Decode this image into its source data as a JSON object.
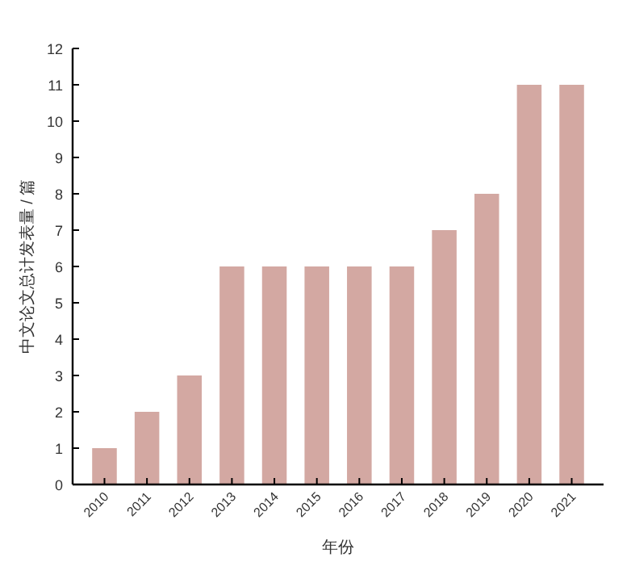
{
  "chart_data": {
    "type": "bar",
    "xlabel": "年份",
    "ylabel": "中文论文总计发表量 / 篇",
    "categories": [
      "2010",
      "2011",
      "2012",
      "2013",
      "2014",
      "2015",
      "2016",
      "2017",
      "2018",
      "2019",
      "2020",
      "2021"
    ],
    "values": [
      1,
      2,
      3,
      6,
      6,
      6,
      6,
      6,
      7,
      8,
      11,
      11
    ],
    "color": "#d3a8a2",
    "ylim": [
      0,
      12
    ],
    "yticks": [
      0,
      1,
      2,
      3,
      4,
      5,
      6,
      7,
      8,
      9,
      10,
      11,
      12
    ]
  }
}
